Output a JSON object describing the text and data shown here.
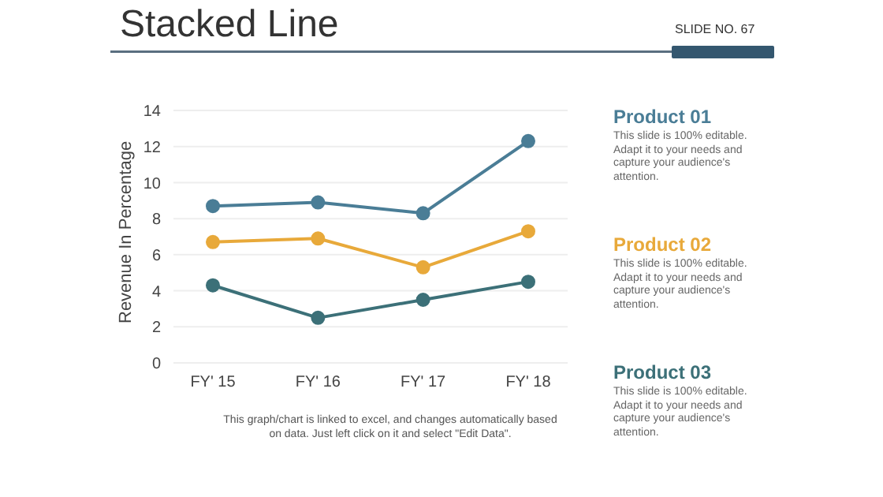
{
  "chart_data": {
    "type": "line",
    "title": "Stacked Line",
    "ylabel": "Revenue In Percentage",
    "categories": [
      "FY' 15",
      "FY' 16",
      "FY' 17",
      "FY' 18"
    ],
    "series": [
      {
        "name": "Product 01",
        "color": "#4a7d96",
        "values": [
          8.7,
          8.9,
          8.3,
          12.3
        ]
      },
      {
        "name": "Product 02",
        "color": "#e8a93a",
        "values": [
          6.7,
          6.9,
          5.3,
          7.3
        ]
      },
      {
        "name": "Product 03",
        "color": "#3c7078",
        "values": [
          4.3,
          2.5,
          3.5,
          4.5
        ]
      }
    ],
    "ylim": [
      0,
      14
    ],
    "yticks": [
      0,
      2,
      4,
      6,
      8,
      10,
      12,
      14
    ],
    "grid": "y",
    "marker": "circle",
    "line_style": "solid",
    "annotations": [
      "SLIDE NO. 67",
      "This graph/chart is linked to excel, and changes automatically based on data. Just left click on it and select \"Edit Data\".",
      "This slide is 100% editable. Adapt it to your needs and capture your audience's attention.",
      "This slide is 100% editable. Adapt it to your needs and capture your audience's attention.",
      "This slide is 100% editable. Adapt it to your needs and capture your audience's attention."
    ]
  }
}
